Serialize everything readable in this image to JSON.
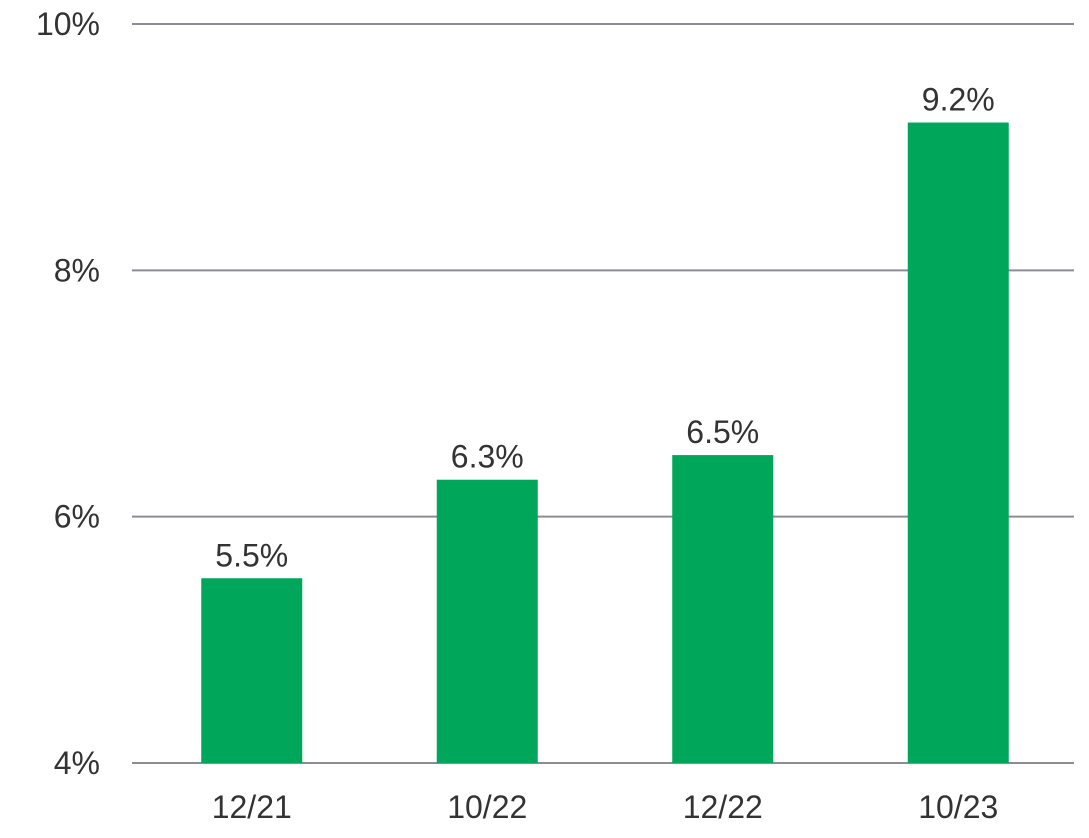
{
  "chart_data": {
    "type": "bar",
    "title": "",
    "xlabel": "",
    "ylabel": "",
    "categories": [
      "12/21",
      "10/22",
      "12/22",
      "10/23"
    ],
    "values": [
      5.5,
      6.3,
      6.5,
      9.2
    ],
    "value_labels": [
      "5.5%",
      "6.3%",
      "6.5%",
      "9.2%"
    ],
    "ylim": [
      4,
      10
    ],
    "y_ticks": [
      4,
      6,
      8,
      10
    ],
    "y_tick_labels": [
      "4%",
      "6%",
      "8%",
      "10%"
    ],
    "grid": true,
    "legend": "none",
    "bar_color": "#00A65A",
    "grid_color": "#8C8C96"
  }
}
